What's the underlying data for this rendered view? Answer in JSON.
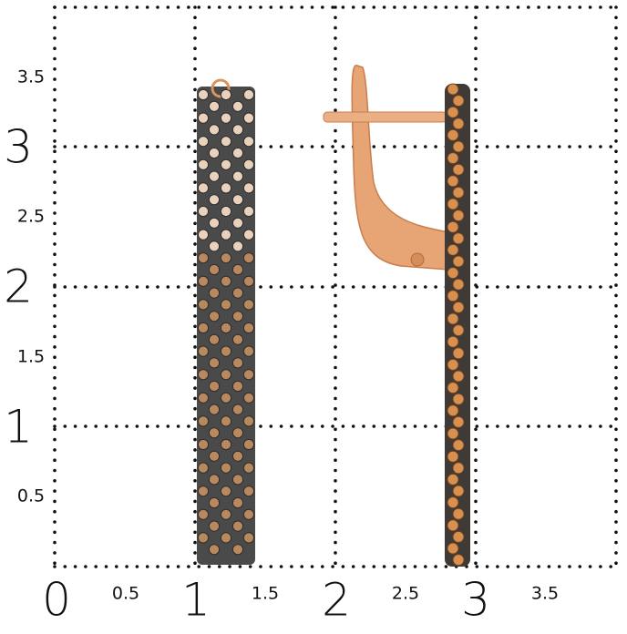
{
  "y_axis_labels": [
    "3.5",
    "3",
    "2.5",
    "2",
    "1.5",
    "1",
    "0.5"
  ],
  "x_axis_labels": [
    "0",
    "0.5",
    "1",
    "1.5",
    "2",
    "2.5",
    "3",
    "3.5"
  ]
}
